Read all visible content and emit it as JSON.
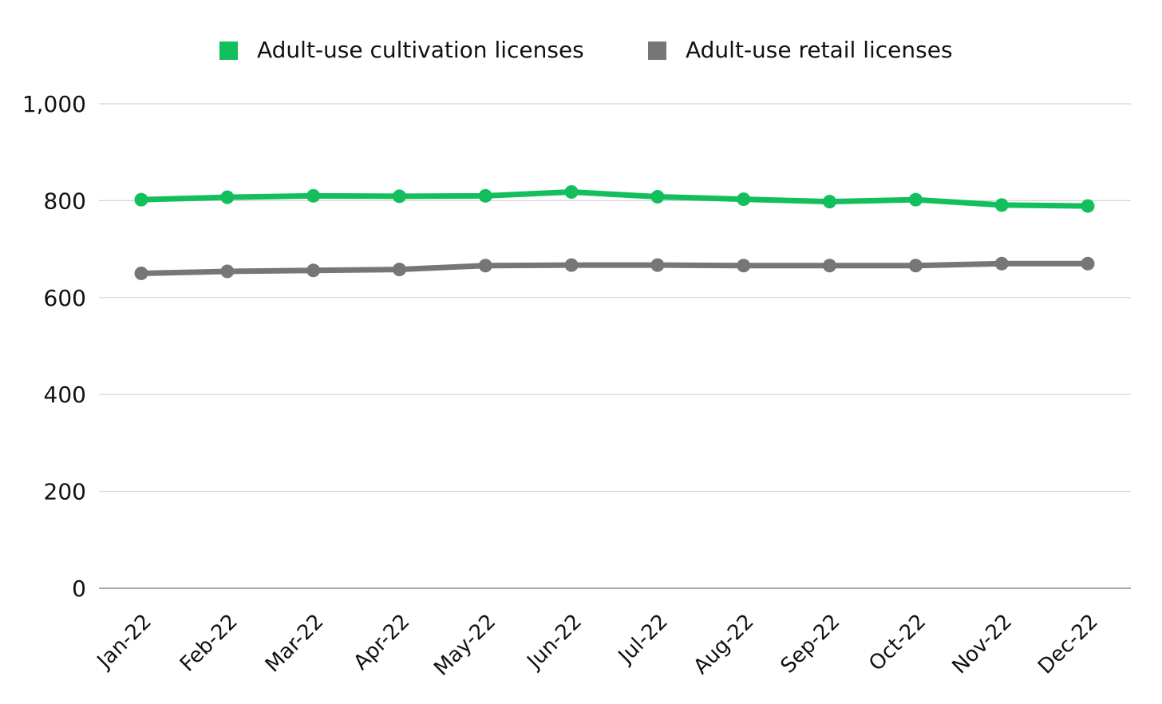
{
  "colors": {
    "background": "#ffffff",
    "gridline": "#d4d4d4",
    "axis": "#8c8c8c",
    "text": "#111111"
  },
  "chart_data": {
    "type": "line",
    "title": "",
    "xlabel": "",
    "ylabel": "",
    "categories": [
      "Jan-22",
      "Feb-22",
      "Mar-22",
      "Apr-22",
      "May-22",
      "Jun-22",
      "Jul-22",
      "Aug-22",
      "Sep-22",
      "Oct-22",
      "Nov-22",
      "Dec-22"
    ],
    "ylim": [
      0,
      1000
    ],
    "yticks": [
      0,
      200,
      400,
      600,
      800,
      1000
    ],
    "ytick_labels": [
      "0",
      "200",
      "400",
      "600",
      "800",
      "1,000"
    ],
    "grid": true,
    "legend_position": "top",
    "series": [
      {
        "name": "Adult-use cultivation licenses",
        "color": "#12bf5c",
        "values": [
          802,
          807,
          810,
          809,
          810,
          818,
          808,
          803,
          798,
          802,
          791,
          789
        ]
      },
      {
        "name": "Adult-use retail licenses",
        "color": "#767676",
        "values": [
          650,
          654,
          656,
          658,
          666,
          667,
          667,
          666,
          666,
          666,
          670,
          670
        ]
      }
    ]
  }
}
